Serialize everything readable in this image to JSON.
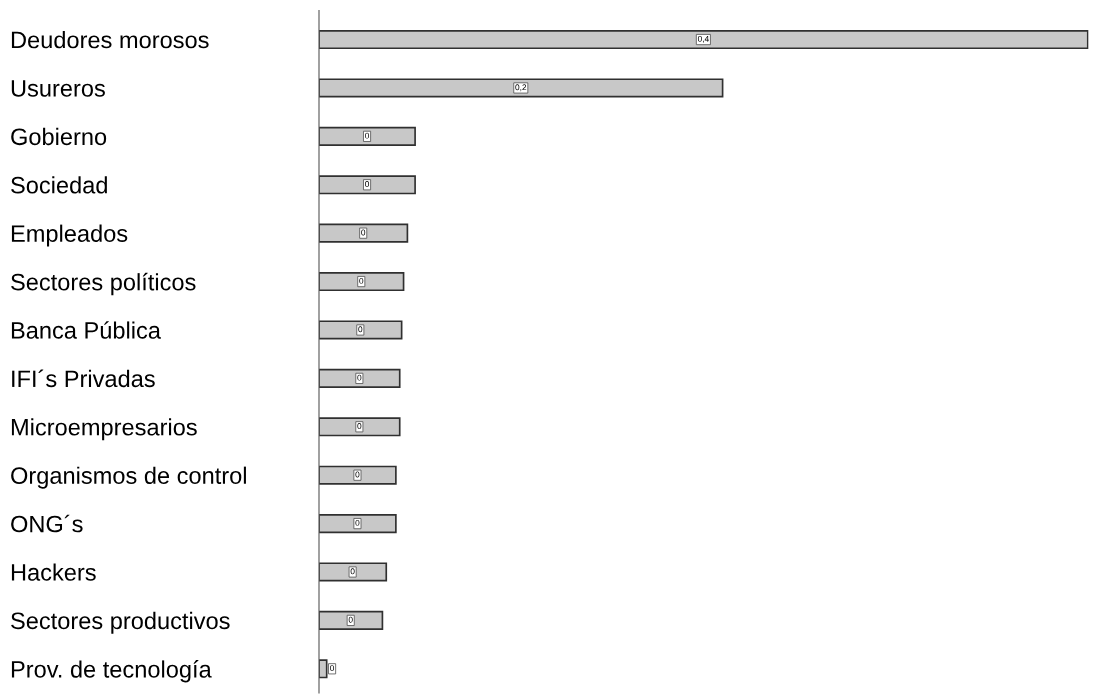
{
  "chart_data": {
    "type": "bar",
    "orientation": "horizontal",
    "categories": [
      "Deudores morosos",
      "Usureros",
      "Gobierno",
      "Sociedad",
      "Empleados",
      "Sectores políticos",
      "Banca Pública",
      "IFI´s Privadas",
      "Microempresarios",
      "Organismos de control",
      "ONG´s",
      "Hackers",
      "Sectores productivos",
      "Prov. de tecnología"
    ],
    "values": [
      0.4,
      0.21,
      0.05,
      0.05,
      0.046,
      0.044,
      0.043,
      0.042,
      0.042,
      0.04,
      0.04,
      0.035,
      0.033,
      0.004
    ],
    "value_labels": [
      "0,4",
      "0,2",
      "0",
      "0",
      "0",
      "0",
      "0",
      "0",
      "0",
      "0",
      "0",
      "0",
      "0",
      "0"
    ],
    "color": "#c8c8c8",
    "grid": false,
    "legend": false
  }
}
